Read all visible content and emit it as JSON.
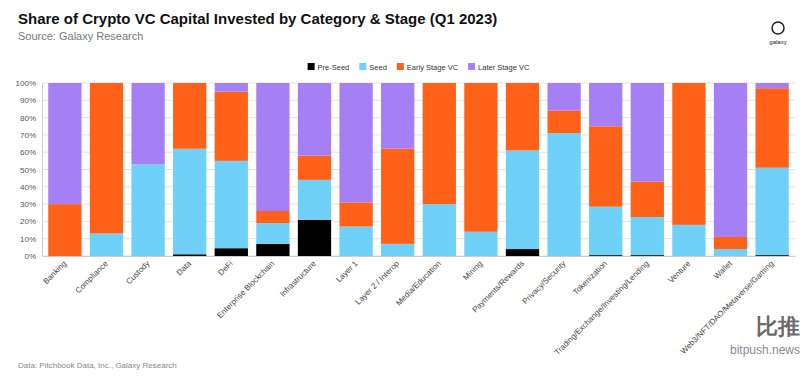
{
  "chart_data": {
    "type": "bar",
    "stacked": true,
    "grid": true,
    "legend": "top",
    "title": "Share of Crypto VC Capital Invested by Category & Stage (Q1 2023)",
    "subtitle": "Source: Galaxy Research",
    "footnote": "Data: Pitchbook Data, Inc., Galaxy Research",
    "annotations": [
      "galaxy",
      "比推",
      "bitpush.news"
    ],
    "categories": [
      "Banking",
      "Compliance",
      "Custody",
      "Data",
      "DeFi",
      "Enterprise Blockchain",
      "Infrastructure",
      "Layer 1",
      "Layer 2 / Interop",
      "Media/Education",
      "Mining",
      "Payments/Rewards",
      "Privacy/Security",
      "Tokenization",
      "Trading/Exchange/Investing/Lending",
      "Venture",
      "Wallet",
      "Web3/NFT/DAO/Metaverse/Gaming"
    ],
    "series": [
      {
        "name": "Pre-Seed",
        "color": "#000000",
        "values": [
          0,
          0,
          0,
          1,
          4.5,
          7,
          21,
          0,
          0,
          0,
          0,
          4,
          0,
          0.5,
          0.5,
          0,
          0,
          0.5
        ]
      },
      {
        "name": "Seed",
        "color": "#6fd0f8",
        "values": [
          0,
          13,
          53,
          61,
          50.5,
          12,
          23,
          17,
          7,
          30,
          14,
          57,
          71,
          28,
          22,
          18,
          4,
          50.5
        ]
      },
      {
        "name": "Early Stage VC",
        "color": "#ff6119",
        "values": [
          30,
          87,
          0,
          38,
          40,
          7,
          14,
          14,
          55,
          70,
          86,
          39,
          13,
          46.5,
          20.5,
          82,
          7,
          46
        ]
      },
      {
        "name": "Later Stage VC",
        "color": "#a57ff4",
        "values": [
          70,
          0,
          47,
          0,
          5,
          74,
          42,
          69,
          38,
          0,
          0,
          0,
          16,
          25,
          57,
          0,
          89,
          3
        ]
      }
    ],
    "ylim": [
      0,
      100
    ],
    "yticks": [
      {
        "value": 0,
        "label": "0%"
      },
      {
        "value": 10,
        "label": "10%"
      },
      {
        "value": 20,
        "label": "20%"
      },
      {
        "value": 30,
        "label": "30%"
      },
      {
        "value": 40,
        "label": "40%"
      },
      {
        "value": 50,
        "label": "50%"
      },
      {
        "value": 60,
        "label": "60%"
      },
      {
        "value": 70,
        "label": "70%"
      },
      {
        "value": 80,
        "label": "80%"
      },
      {
        "value": 90,
        "label": "90%"
      },
      {
        "value": 100,
        "label": "100%"
      }
    ]
  }
}
